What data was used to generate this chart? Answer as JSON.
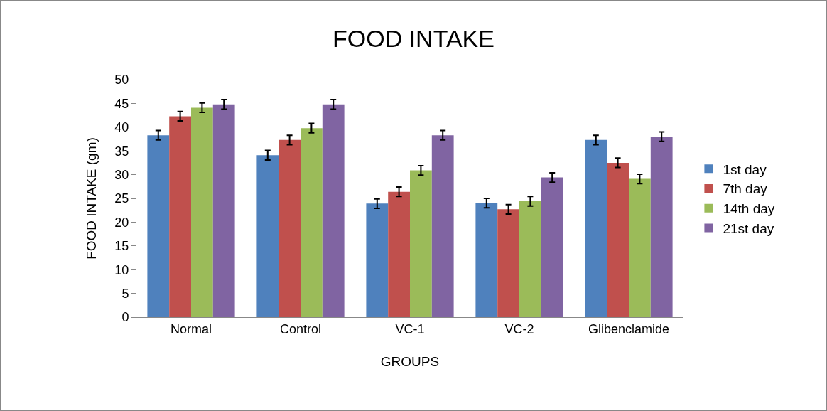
{
  "chart_data": {
    "type": "bar",
    "title": "FOOD INTAKE",
    "xlabel": "GROUPS",
    "ylabel": "FOOD INTAKE (gm)",
    "categories": [
      "Normal",
      "Control",
      "VC-1",
      "VC-2",
      "Glibenclamide"
    ],
    "series": [
      {
        "name": "1st day",
        "color": "#4f81bd",
        "values": [
          38.3,
          34.1,
          23.9,
          24.0,
          37.3
        ],
        "errors": [
          1,
          1,
          1,
          1,
          1
        ]
      },
      {
        "name": "7th day",
        "color": "#c0504d",
        "values": [
          42.3,
          37.3,
          26.4,
          22.7,
          32.5
        ],
        "errors": [
          1,
          1,
          1,
          1,
          1
        ]
      },
      {
        "name": "14th day",
        "color": "#9bbb59",
        "values": [
          44.1,
          39.8,
          30.9,
          24.4,
          29.1
        ],
        "errors": [
          1,
          1,
          1,
          1,
          1
        ]
      },
      {
        "name": "21st day",
        "color": "#8064a2",
        "values": [
          44.8,
          44.8,
          38.3,
          29.4,
          38.0
        ],
        "errors": [
          1,
          1,
          1,
          1,
          1
        ]
      }
    ],
    "ylim": [
      0,
      50
    ],
    "yticks": [
      0,
      5,
      10,
      15,
      20,
      25,
      30,
      35,
      40,
      45,
      50
    ],
    "grid": false,
    "legend": "right"
  }
}
